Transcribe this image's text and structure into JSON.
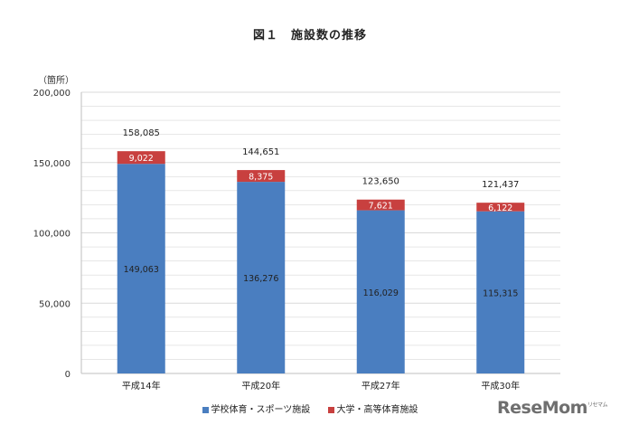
{
  "title": "図１　施設数の推移",
  "unit_label": "（箇所）",
  "watermark": "ReseMom",
  "watermark_sub": "リセマム",
  "colors": {
    "school": "#4a7ec0",
    "university": "#c8403f",
    "grid": "#d9d9d9",
    "axis": "#bfbfbf"
  },
  "chart_data": {
    "type": "bar",
    "stacked": true,
    "title": "図１　施設数の推移",
    "ylabel": "（箇所）",
    "ylim": [
      0,
      200000
    ],
    "yticks": [
      0,
      50000,
      100000,
      150000,
      200000
    ],
    "ytick_labels": [
      "0",
      "50,000",
      "100,000",
      "150,000",
      "200,000"
    ],
    "grid": true,
    "legend_position": "bottom",
    "categories": [
      "平成14年",
      "平成20年",
      "平成27年",
      "平成30年"
    ],
    "series": [
      {
        "name": "学校体育・スポーツ施設",
        "values": [
          149063,
          136276,
          116029,
          115315
        ],
        "labels": [
          "149,063",
          "136,276",
          "116,029",
          "115,315"
        ]
      },
      {
        "name": "大学・高等体育施設",
        "values": [
          9022,
          8375,
          7621,
          6122
        ],
        "labels": [
          "9,022",
          "8,375",
          "7,621",
          "6,122"
        ]
      }
    ],
    "totals": [
      158085,
      144651,
      123650,
      121437
    ],
    "total_labels": [
      "158,085",
      "144,651",
      "123,650",
      "121,437"
    ]
  }
}
